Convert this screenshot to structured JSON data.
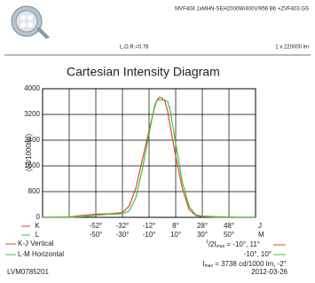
{
  "header": {
    "product": "MVF404 1xMHN-SEH2000W/400V/956 B6 +ZVF403 GS",
    "lor": "L.O.R.=0.78",
    "lamp_flux": "1 x 220000 lm"
  },
  "chart_data": {
    "type": "line",
    "title": "Cartesian Intensity Diagram",
    "ylabel": "(cd/1000lm)",
    "xlim": [
      -90,
      70
    ],
    "ylim": [
      0,
      4000
    ],
    "yticks": [
      0,
      800,
      1600,
      2400,
      3200,
      4000
    ],
    "xticks": [
      {
        "value": -50,
        "label": "-50°"
      },
      {
        "value": -30,
        "label": "-30°"
      },
      {
        "value": -10,
        "label": "-10°"
      },
      {
        "value": 10,
        "label": "10°"
      },
      {
        "value": 30,
        "label": "30°"
      },
      {
        "value": 50,
        "label": "50°"
      }
    ],
    "x2lim": [
      -92,
      68
    ],
    "x2ticks": [
      {
        "value": -52,
        "label": "-52°"
      },
      {
        "value": -32,
        "label": "-32°"
      },
      {
        "value": -12,
        "label": "-12°"
      },
      {
        "value": 8,
        "label": "8°"
      },
      {
        "value": 28,
        "label": "28°"
      },
      {
        "value": 48,
        "label": "48°"
      }
    ],
    "xgrid": [
      -70,
      -50,
      -30,
      -10,
      10,
      30,
      50
    ],
    "grid": true,
    "x_axis_ends": [
      "L",
      "M"
    ],
    "x2_axis_ends": [
      "K",
      "J"
    ],
    "x": [
      -90,
      -70,
      -60,
      -50,
      -40,
      -30,
      -25,
      -20,
      -15,
      -10,
      -6,
      -4,
      -2,
      0,
      2,
      4,
      6,
      10,
      15,
      20,
      25,
      30,
      40,
      50,
      60,
      70
    ],
    "series": [
      {
        "name": "K-J Vertical",
        "color": "#e0442a",
        "values": [
          0,
          10,
          60,
          100,
          110,
          150,
          350,
          900,
          1800,
          2700,
          3400,
          3650,
          3738,
          3700,
          3600,
          3300,
          2800,
          1900,
          900,
          250,
          60,
          20,
          5,
          0,
          0,
          0
        ]
      },
      {
        "name": "L-M Horizontal",
        "color": "#3cc43c",
        "values": [
          0,
          0,
          20,
          60,
          100,
          110,
          200,
          600,
          1500,
          2600,
          3450,
          3650,
          3650,
          3650,
          3650,
          3600,
          3300,
          2300,
          1100,
          350,
          80,
          40,
          20,
          10,
          0,
          0
        ]
      }
    ]
  },
  "annotations": {
    "half_sup": "1",
    "half_slash": "/",
    "half_sub": "2",
    "imax_symbol": "I",
    "imax_sub": "max",
    "half_max_K": " = -10°, 11°",
    "half_max_L": "-10°, 10°",
    "imax_value": " = 3738 cd/1000 lm, -2°"
  },
  "footer": {
    "code": "LVM0785201",
    "date": "2012-03-26"
  }
}
